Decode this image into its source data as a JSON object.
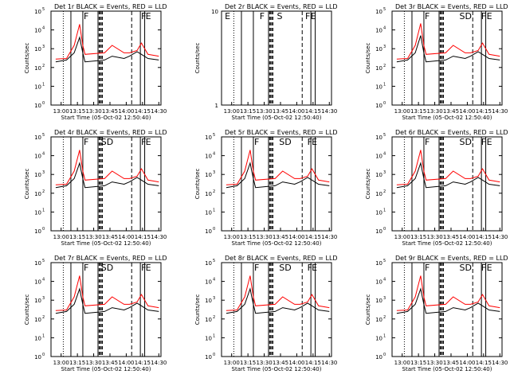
{
  "colors": {
    "events": "#000000",
    "lld": "#ff0000",
    "axes": "#000000"
  },
  "common": {
    "xlabel": "Start Time (05-Oct-02 12:50:40)",
    "ylabel": "Counts/sec",
    "x_ticks": [
      "13:00",
      "13:15",
      "13:30",
      "13:45",
      "14:00",
      "14:15",
      "14:30"
    ],
    "y_ticks_log": [
      "10^0",
      "10^1",
      "10^2",
      "10^3",
      "10^4",
      "10^5"
    ],
    "y_ticks_lin": [
      "1",
      "10"
    ]
  },
  "chart_data": [
    {
      "title": "Det 1r BLACK = Events, RED = LLD",
      "type": "line",
      "scale": "log",
      "x_range": [
        "12:50:40",
        "14:32"
      ],
      "ylim": [
        1,
        100000
      ],
      "markers": [
        "F",
        "F",
        "E"
      ],
      "marker_x": [
        "13:20",
        "14:13",
        "14:17"
      ],
      "series": [
        {
          "name": "Events",
          "x": [
            "12:55",
            "13:05",
            "13:12",
            "13:17",
            "13:20",
            "13:22",
            "13:40",
            "13:47",
            "13:58",
            "14:03",
            "14:10",
            "14:14",
            "14:20",
            "14:30"
          ],
          "values": [
            200,
            250,
            600,
            4000,
            600,
            200,
            250,
            400,
            300,
            400,
            700,
            500,
            300,
            250
          ]
        },
        {
          "name": "LLD",
          "x": [
            "12:55",
            "13:05",
            "13:12",
            "13:17",
            "13:20",
            "13:22",
            "13:40",
            "13:47",
            "13:58",
            "14:03",
            "14:10",
            "14:14",
            "14:20",
            "14:30"
          ],
          "values": [
            280,
            300,
            1500,
            20000,
            1500,
            500,
            600,
            1500,
            600,
            600,
            800,
            2000,
            500,
            400
          ]
        }
      ]
    },
    {
      "title": "Det 2r BLACK = Events, RED = LLD",
      "type": "line",
      "scale": "linear",
      "x_range": [
        "12:50:40",
        "14:32"
      ],
      "ylim": [
        1,
        10
      ],
      "markers": [
        "E",
        "F",
        "S",
        "F",
        "E"
      ],
      "marker_x": [
        "12:53",
        "13:25",
        "13:41",
        "14:07",
        "14:12"
      ],
      "series": []
    },
    {
      "title": "Det 3r BLACK = Events, RED = LLD",
      "type": "line",
      "scale": "log",
      "x_range": [
        "12:50:40",
        "14:32"
      ],
      "ylim": [
        1,
        100000
      ],
      "markers": [
        "F",
        "SD",
        "F",
        "E"
      ],
      "marker_x": [
        "13:20",
        "13:52",
        "14:12",
        "14:17"
      ],
      "series": [
        {
          "name": "Events",
          "x": [
            "12:55",
            "13:05",
            "13:12",
            "13:17",
            "13:20",
            "13:22",
            "13:40",
            "13:47",
            "13:58",
            "14:03",
            "14:10",
            "14:14",
            "14:20",
            "14:30"
          ],
          "values": [
            200,
            250,
            600,
            5000,
            600,
            200,
            250,
            400,
            300,
            400,
            700,
            500,
            300,
            250
          ]
        },
        {
          "name": "LLD",
          "x": [
            "12:55",
            "13:05",
            "13:12",
            "13:17",
            "13:20",
            "13:22",
            "13:40",
            "13:47",
            "13:58",
            "14:03",
            "14:10",
            "14:14",
            "14:20",
            "14:30"
          ],
          "values": [
            280,
            300,
            1500,
            22000,
            1500,
            500,
            600,
            1500,
            600,
            600,
            800,
            2000,
            500,
            400
          ]
        }
      ]
    },
    {
      "title": "Det 4r BLACK = Events, RED = LLD",
      "type": "line",
      "scale": "log",
      "x_range": [
        "12:50:40",
        "14:32"
      ],
      "ylim": [
        1,
        100000
      ],
      "markers": [
        "F",
        "SD",
        "F",
        "E"
      ],
      "marker_x": [
        "13:20",
        "13:36",
        "14:13",
        "14:17"
      ],
      "series": [
        {
          "name": "Events",
          "x": [
            "12:55",
            "13:05",
            "13:12",
            "13:17",
            "13:20",
            "13:22",
            "13:40",
            "13:47",
            "13:58",
            "14:03",
            "14:10",
            "14:14",
            "14:20",
            "14:30"
          ],
          "values": [
            200,
            250,
            600,
            4000,
            600,
            200,
            250,
            400,
            300,
            400,
            700,
            500,
            300,
            250
          ]
        },
        {
          "name": "LLD",
          "x": [
            "12:55",
            "13:05",
            "13:12",
            "13:17",
            "13:20",
            "13:22",
            "13:40",
            "13:47",
            "13:58",
            "14:03",
            "14:10",
            "14:14",
            "14:20",
            "14:30"
          ],
          "values": [
            280,
            300,
            1500,
            20000,
            1500,
            500,
            600,
            1500,
            600,
            600,
            800,
            2000,
            500,
            400
          ]
        }
      ]
    },
    {
      "title": "Det 5r BLACK = Events, RED = LLD",
      "type": "line",
      "scale": "log",
      "x_range": [
        "12:50:40",
        "14:32"
      ],
      "ylim": [
        1,
        100000
      ],
      "markers": [
        "F",
        "SD",
        "F",
        "E"
      ],
      "marker_x": [
        "13:20",
        "13:43",
        "14:09",
        "14:13"
      ],
      "series": [
        {
          "name": "Events",
          "x": [
            "12:55",
            "13:05",
            "13:12",
            "13:17",
            "13:20",
            "13:22",
            "13:40",
            "13:47",
            "13:58",
            "14:03",
            "14:10",
            "14:14",
            "14:20",
            "14:30"
          ],
          "values": [
            200,
            250,
            600,
            4000,
            600,
            200,
            250,
            400,
            300,
            400,
            700,
            500,
            300,
            250
          ]
        },
        {
          "name": "LLD",
          "x": [
            "12:55",
            "13:05",
            "13:12",
            "13:17",
            "13:20",
            "13:22",
            "13:40",
            "13:47",
            "13:58",
            "14:03",
            "14:10",
            "14:14",
            "14:20",
            "14:30"
          ],
          "values": [
            280,
            300,
            1500,
            20000,
            1500,
            500,
            600,
            1500,
            600,
            600,
            800,
            2000,
            500,
            400
          ]
        }
      ]
    },
    {
      "title": "Det 6r BLACK = Events, RED = LLD",
      "type": "line",
      "scale": "log",
      "x_range": [
        "12:50:40",
        "14:32"
      ],
      "ylim": [
        1,
        100000
      ],
      "markers": [
        "F",
        "SD",
        "F",
        "E"
      ],
      "marker_x": [
        "13:20",
        "13:52",
        "14:12",
        "14:17"
      ],
      "series": [
        {
          "name": "Events",
          "x": [
            "12:55",
            "13:05",
            "13:12",
            "13:17",
            "13:20",
            "13:22",
            "13:40",
            "13:47",
            "13:58",
            "14:03",
            "14:10",
            "14:14",
            "14:20",
            "14:30"
          ],
          "values": [
            200,
            250,
            600,
            4000,
            600,
            200,
            250,
            400,
            300,
            400,
            700,
            500,
            300,
            250
          ]
        },
        {
          "name": "LLD",
          "x": [
            "12:55",
            "13:05",
            "13:12",
            "13:17",
            "13:20",
            "13:22",
            "13:40",
            "13:47",
            "13:58",
            "14:03",
            "14:10",
            "14:14",
            "14:20",
            "14:30"
          ],
          "values": [
            280,
            300,
            1500,
            20000,
            1500,
            500,
            600,
            1500,
            600,
            600,
            800,
            2000,
            500,
            400
          ]
        }
      ]
    },
    {
      "title": "Det 7r BLACK = Events, RED = LLD",
      "type": "line",
      "scale": "log",
      "x_range": [
        "12:50:40",
        "14:32"
      ],
      "ylim": [
        1,
        100000
      ],
      "markers": [
        "F",
        "SD",
        "F",
        "E"
      ],
      "marker_x": [
        "13:20",
        "13:36",
        "14:13",
        "14:17"
      ],
      "series": [
        {
          "name": "Events",
          "x": [
            "12:55",
            "13:05",
            "13:12",
            "13:17",
            "13:20",
            "13:22",
            "13:40",
            "13:47",
            "13:58",
            "14:03",
            "14:10",
            "14:14",
            "14:20",
            "14:30"
          ],
          "values": [
            200,
            250,
            600,
            4000,
            600,
            200,
            250,
            400,
            300,
            400,
            700,
            500,
            300,
            250
          ]
        },
        {
          "name": "LLD",
          "x": [
            "12:55",
            "13:05",
            "13:12",
            "13:17",
            "13:20",
            "13:22",
            "13:40",
            "13:47",
            "13:58",
            "14:03",
            "14:10",
            "14:14",
            "14:20",
            "14:30"
          ],
          "values": [
            280,
            300,
            1500,
            20000,
            1500,
            500,
            600,
            1500,
            600,
            600,
            800,
            2000,
            500,
            400
          ]
        }
      ]
    },
    {
      "title": "Det 8r BLACK = Events, RED = LLD",
      "type": "line",
      "scale": "log",
      "x_range": [
        "12:50:40",
        "14:32"
      ],
      "ylim": [
        1,
        100000
      ],
      "markers": [
        "F",
        "SD",
        "F",
        "E"
      ],
      "marker_x": [
        "13:20",
        "13:43",
        "14:09",
        "14:13"
      ],
      "series": [
        {
          "name": "Events",
          "x": [
            "12:55",
            "13:05",
            "13:12",
            "13:17",
            "13:20",
            "13:22",
            "13:40",
            "13:47",
            "13:58",
            "14:03",
            "14:10",
            "14:14",
            "14:20",
            "14:30"
          ],
          "values": [
            200,
            250,
            600,
            4000,
            600,
            200,
            250,
            400,
            300,
            400,
            700,
            500,
            300,
            250
          ]
        },
        {
          "name": "LLD",
          "x": [
            "12:55",
            "13:05",
            "13:12",
            "13:17",
            "13:20",
            "13:22",
            "13:40",
            "13:47",
            "13:58",
            "14:03",
            "14:10",
            "14:14",
            "14:20",
            "14:30"
          ],
          "values": [
            280,
            300,
            1500,
            20000,
            1500,
            500,
            600,
            1500,
            600,
            600,
            800,
            2000,
            500,
            400
          ]
        }
      ]
    },
    {
      "title": "Det 9r BLACK = Events, RED = LLD",
      "type": "line",
      "scale": "log",
      "x_range": [
        "12:50:40",
        "14:32"
      ],
      "ylim": [
        1,
        100000
      ],
      "markers": [
        "F",
        "SD",
        "F",
        "E"
      ],
      "marker_x": [
        "13:20",
        "13:52",
        "14:12",
        "14:17"
      ],
      "series": [
        {
          "name": "Events",
          "x": [
            "12:55",
            "13:05",
            "13:12",
            "13:17",
            "13:20",
            "13:22",
            "13:40",
            "13:47",
            "13:58",
            "14:03",
            "14:10",
            "14:14",
            "14:20",
            "14:30"
          ],
          "values": [
            200,
            250,
            600,
            4000,
            600,
            200,
            250,
            400,
            300,
            400,
            700,
            500,
            300,
            250
          ]
        },
        {
          "name": "LLD",
          "x": [
            "12:55",
            "13:05",
            "13:12",
            "13:17",
            "13:20",
            "13:22",
            "13:40",
            "13:47",
            "13:58",
            "14:03",
            "14:10",
            "14:14",
            "14:20",
            "14:30"
          ],
          "values": [
            280,
            300,
            1500,
            20000,
            1500,
            500,
            600,
            1500,
            600,
            600,
            800,
            2000,
            500,
            400
          ]
        }
      ]
    }
  ]
}
